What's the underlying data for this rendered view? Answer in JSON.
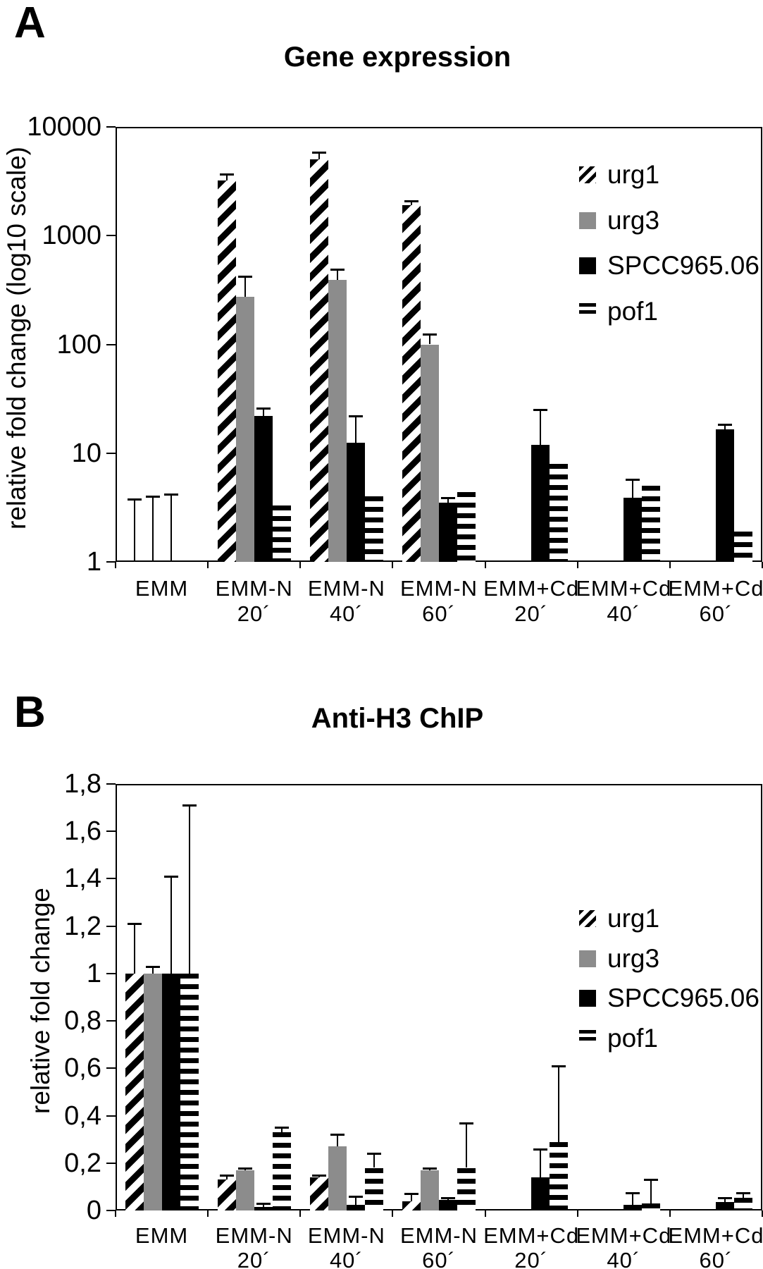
{
  "panels": {
    "a": "A",
    "b": "B"
  },
  "colors": {
    "gray": "#8c8c8c",
    "black": "#000000",
    "background": "#ffffff"
  },
  "chart_data": [
    {
      "id": "gene-expression",
      "panel": "A",
      "type": "bar",
      "title": "Gene expression",
      "ylabel": "relative fold change (log10 scale)",
      "y_scale": "log10",
      "ylim": [
        1,
        10000
      ],
      "grid": false,
      "legend_position": "inside-right",
      "yticks": [
        {
          "label": "10000",
          "value": 10000
        },
        {
          "label": "1000",
          "value": 1000
        },
        {
          "label": "100",
          "value": 100
        },
        {
          "label": "10",
          "value": 10
        },
        {
          "label": "1",
          "value": 1
        }
      ],
      "categories": [
        "EMM",
        "EMM-N 20´",
        "EMM-N 40´",
        "EMM-N 60´",
        "EMM+Cd 20´",
        "EMM+Cd 40´",
        "EMM+Cd 60´"
      ],
      "categories_line1": [
        "EMM",
        "EMM-N",
        "EMM-N",
        "EMM-N",
        "EMM+Cd",
        "EMM+Cd",
        "EMM+Cd"
      ],
      "categories_line2": [
        "",
        "20´",
        "40´",
        "60´",
        "20´",
        "40´",
        "60´"
      ],
      "series": [
        {
          "name": "urg1",
          "pattern": "diagonal-hatch",
          "values": [
            1,
            3200,
            5000,
            1900,
            1,
            1,
            1
          ],
          "err_top": [
            3.8,
            3700,
            5800,
            2100,
            null,
            null,
            null
          ]
        },
        {
          "name": "urg3",
          "pattern": "solid-gray",
          "values": [
            1,
            275,
            390,
            100,
            1,
            1,
            1
          ],
          "err_top": [
            4.0,
            420,
            490,
            125,
            null,
            null,
            null
          ]
        },
        {
          "name": "SPCC965.06",
          "pattern": "solid-black",
          "values": [
            1,
            22,
            12.5,
            3.5,
            12,
            3.9,
            16.5
          ],
          "err_top": [
            4.2,
            26,
            22,
            3.9,
            25,
            5.7,
            18.5
          ]
        },
        {
          "name": "pof1",
          "pattern": "horizontal-stripes",
          "values": [
            1,
            3.3,
            4.0,
            4.4,
            8,
            5,
            1.9
          ],
          "err_top": [
            null,
            null,
            null,
            null,
            null,
            null,
            null
          ]
        }
      ]
    },
    {
      "id": "anti-h3-chip",
      "panel": "B",
      "type": "bar",
      "title": "Anti-H3 ChIP",
      "ylabel": "relative fold change",
      "y_scale": "linear",
      "ylim": [
        0,
        1.8
      ],
      "grid": false,
      "legend_position": "inside-right",
      "yticks": [
        {
          "label": "1,8",
          "value": 1.8
        },
        {
          "label": "1,6",
          "value": 1.6
        },
        {
          "label": "1,4",
          "value": 1.4
        },
        {
          "label": "1,2",
          "value": 1.2
        },
        {
          "label": "1",
          "value": 1.0
        },
        {
          "label": "0,8",
          "value": 0.8
        },
        {
          "label": "0,6",
          "value": 0.6
        },
        {
          "label": "0,4",
          "value": 0.4
        },
        {
          "label": "0,2",
          "value": 0.2
        },
        {
          "label": "0",
          "value": 0
        }
      ],
      "categories": [
        "EMM",
        "EMM-N 20´",
        "EMM-N 40´",
        "EMM-N 60´",
        "EMM+Cd 20´",
        "EMM+Cd 40´",
        "EMM+Cd 60´"
      ],
      "categories_line1": [
        "EMM",
        "EMM-N",
        "EMM-N",
        "EMM-N",
        "EMM+Cd",
        "EMM+Cd",
        "EMM+Cd"
      ],
      "categories_line2": [
        "",
        "20´",
        "40´",
        "60´",
        "20´",
        "40´",
        "60´"
      ],
      "series": [
        {
          "name": "urg1",
          "pattern": "diagonal-hatch",
          "values": [
            1.0,
            0.13,
            0.14,
            0.04,
            0,
            0,
            0
          ],
          "err_top": [
            1.21,
            0.15,
            0.15,
            0.07,
            null,
            null,
            null
          ]
        },
        {
          "name": "urg3",
          "pattern": "solid-gray",
          "values": [
            1.0,
            0.17,
            0.27,
            0.17,
            0,
            0,
            0
          ],
          "err_top": [
            1.03,
            0.18,
            0.32,
            0.18,
            null,
            null,
            null
          ]
        },
        {
          "name": "SPCC965.06",
          "pattern": "solid-black",
          "values": [
            1.0,
            0.015,
            0.025,
            0.045,
            0.14,
            0.025,
            0.035
          ],
          "err_top": [
            1.41,
            0.03,
            0.06,
            0.055,
            0.26,
            0.075,
            0.055
          ]
        },
        {
          "name": "pof1",
          "pattern": "horizontal-stripes",
          "values": [
            1.0,
            0.33,
            0.18,
            0.18,
            0.29,
            0.03,
            0.055
          ],
          "err_top": [
            1.71,
            0.35,
            0.24,
            0.37,
            0.61,
            0.13,
            0.075
          ]
        }
      ]
    }
  ]
}
